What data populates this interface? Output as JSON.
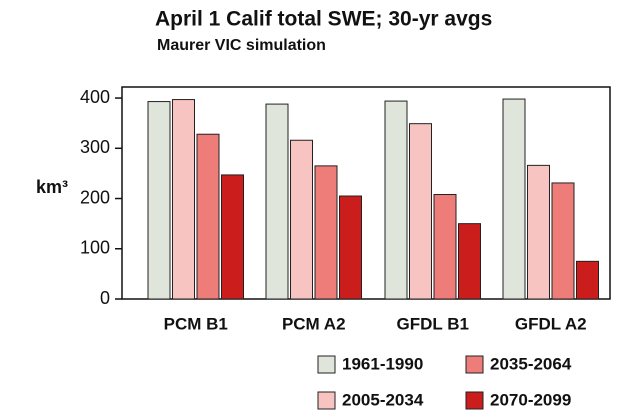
{
  "chart_data": {
    "type": "bar",
    "title": "April 1 Calif total SWE; 30-yr avgs",
    "subtitle": "Maurer VIC simulation",
    "y_label": "km³",
    "categories": [
      "PCM B1",
      "PCM A2",
      "GFDL B1",
      "GFDL A2"
    ],
    "series": [
      {
        "name": "1961-1990",
        "color": "#dfe5da",
        "values": [
          393,
          388,
          394,
          398
        ]
      },
      {
        "name": "2005-2034",
        "color": "#f8c4c1",
        "values": [
          397,
          316,
          349,
          266
        ]
      },
      {
        "name": "2035-2064",
        "color": "#ee7d79",
        "values": [
          328,
          265,
          208,
          231
        ]
      },
      {
        "name": "2070-2099",
        "color": "#cc1d1d",
        "values": [
          247,
          205,
          150,
          75
        ]
      }
    ],
    "ylim": [
      0,
      422
    ],
    "yticks": [
      0,
      100,
      200,
      300,
      400
    ]
  }
}
